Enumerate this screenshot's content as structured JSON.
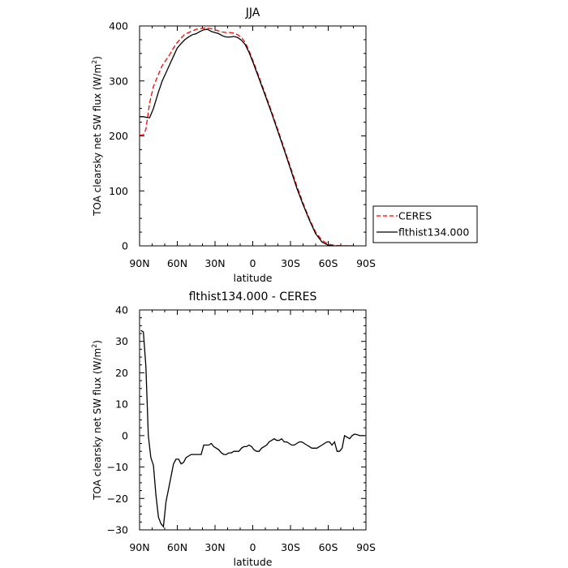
{
  "chart_data": [
    {
      "type": "line",
      "title": "JJA",
      "xlabel": "latitude",
      "ylabel_main": "TOA clearsky net SW flux (W/m",
      "ylabel_sup": "2",
      "ylabel_close": ")",
      "xlim": [
        90,
        -90
      ],
      "ylim": [
        0,
        400
      ],
      "xticks": [
        90,
        60,
        30,
        0,
        -30,
        -60,
        -90
      ],
      "xticklabels": [
        "90N",
        "60N",
        "30N",
        "0",
        "30S",
        "60S",
        "90S"
      ],
      "yticks": [
        0,
        100,
        200,
        300,
        400
      ],
      "yticklabels": [
        "0",
        "100",
        "200",
        "300",
        "400"
      ],
      "legend": "outside-right",
      "series": [
        {
          "name": "CERES",
          "color": "#ff0000",
          "dash": "dashed",
          "x": [
            90,
            87,
            85,
            82,
            79,
            75,
            72,
            69,
            66,
            63,
            60,
            57,
            54,
            51,
            48,
            45,
            42,
            39,
            36,
            33,
            30,
            27,
            24,
            21,
            18,
            15,
            12,
            9,
            6,
            3,
            0,
            -5,
            -10,
            -15,
            -20,
            -25,
            -30,
            -35,
            -40,
            -45,
            -50,
            -55,
            -60,
            -65,
            -70,
            -75,
            -80
          ],
          "y": [
            201,
            202,
            212,
            260,
            290,
            312,
            328,
            338,
            348,
            360,
            370,
            378,
            385,
            388,
            391,
            394,
            395,
            396,
            396,
            395,
            393,
            391,
            389,
            388,
            388,
            387,
            384,
            379,
            370,
            355,
            338,
            307,
            276,
            244,
            211,
            177,
            143,
            109,
            78,
            49,
            25,
            10,
            3,
            1,
            0,
            0,
            0
          ]
        },
        {
          "name": "flthist134.000",
          "color": "#000000",
          "dash": "solid",
          "x": [
            90,
            87,
            85,
            82,
            79,
            75,
            72,
            69,
            66,
            63,
            60,
            57,
            54,
            51,
            48,
            45,
            42,
            39,
            36,
            33,
            30,
            27,
            24,
            21,
            18,
            15,
            12,
            9,
            6,
            3,
            0,
            -5,
            -10,
            -15,
            -20,
            -25,
            -30,
            -35,
            -40,
            -45,
            -50,
            -55,
            -60,
            -65,
            -70,
            -75,
            -80
          ],
          "y": [
            235,
            235,
            234,
            233,
            250,
            280,
            300,
            315,
            330,
            345,
            360,
            368,
            375,
            380,
            384,
            386,
            390,
            393,
            394,
            390,
            388,
            386,
            382,
            380,
            380,
            381,
            379,
            374,
            366,
            352,
            335,
            304,
            273,
            241,
            208,
            174,
            140,
            105,
            75,
            47,
            22,
            7,
            1,
            0,
            0,
            0,
            0
          ]
        }
      ]
    },
    {
      "type": "line",
      "title": "flthist134.000 - CERES",
      "xlabel": "latitude",
      "ylabel_main": "TOA clearsky net SW flux (W/m",
      "ylabel_sup": "2",
      "ylabel_close": ")",
      "xlim": [
        90,
        -90
      ],
      "ylim": [
        -30,
        40
      ],
      "xticks": [
        90,
        60,
        30,
        0,
        -30,
        -60,
        -90
      ],
      "xticklabels": [
        "90N",
        "60N",
        "30N",
        "0",
        "30S",
        "60S",
        "90S"
      ],
      "yticks": [
        -30,
        -20,
        -10,
        0,
        10,
        20,
        30,
        40
      ],
      "yticklabels": [
        "−30",
        "−20",
        "−10",
        "0",
        "10",
        "20",
        "30",
        "40"
      ],
      "series": [
        {
          "name": "",
          "color": "#000000",
          "dash": "solid",
          "x": [
            89,
            87,
            85,
            83,
            81,
            79,
            77,
            75,
            73,
            71,
            69,
            67,
            65,
            63,
            61,
            59,
            57,
            55,
            53,
            51,
            49,
            47,
            45,
            43,
            41,
            39,
            37,
            35,
            33,
            31,
            29,
            27,
            25,
            23,
            21,
            19,
            17,
            15,
            13,
            11,
            9,
            7,
            5,
            3,
            1,
            -1,
            -3,
            -5,
            -7,
            -9,
            -11,
            -13,
            -15,
            -17,
            -19,
            -21,
            -23,
            -25,
            -27,
            -29,
            -31,
            -33,
            -35,
            -37,
            -39,
            -41,
            -43,
            -45,
            -47,
            -49,
            -51,
            -53,
            -55,
            -57,
            -59,
            -61,
            -63,
            -65,
            -67,
            -69,
            -71,
            -73,
            -75,
            -77,
            -79,
            -81,
            -83,
            -85,
            -87,
            -89
          ],
          "y": [
            33.5,
            33,
            22,
            0,
            -7,
            -9.5,
            -19,
            -26,
            -28,
            -29,
            -21,
            -17,
            -13,
            -9,
            -7.5,
            -7.5,
            -9,
            -8.5,
            -7,
            -6.5,
            -6,
            -6,
            -6,
            -6,
            -6,
            -3,
            -3,
            -3,
            -2.5,
            -3.5,
            -4,
            -4.5,
            -5.5,
            -6,
            -6,
            -5.5,
            -5.5,
            -5,
            -5,
            -5,
            -4,
            -3.5,
            -3.5,
            -3,
            -3.5,
            -4.5,
            -5,
            -5,
            -4,
            -3.5,
            -3,
            -2,
            -1.5,
            -1,
            -1.5,
            -1.5,
            -1,
            -2,
            -2,
            -2.5,
            -3,
            -3,
            -2.5,
            -2,
            -2,
            -2.5,
            -3,
            -3.5,
            -4,
            -4,
            -4,
            -3.5,
            -3,
            -2.5,
            -2,
            -2,
            -3,
            -2,
            -5,
            -5,
            -4,
            0,
            -0.5,
            -1,
            0,
            0.5,
            0.3,
            0,
            0,
            0
          ]
        }
      ]
    }
  ]
}
